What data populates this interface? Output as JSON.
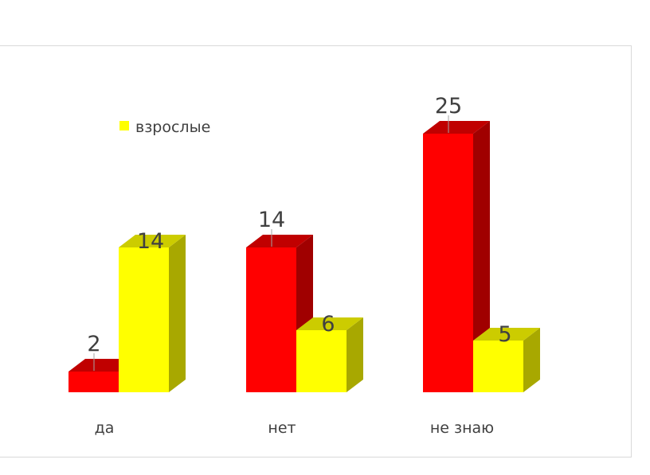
{
  "chart_data": {
    "type": "bar",
    "style": "3d-clustered-column",
    "categories": [
      "да",
      "нет",
      "не знаю"
    ],
    "series": [
      {
        "values": [
          2,
          14,
          25
        ],
        "color": "#ff0000",
        "side_color": "#a00000",
        "top_color": "#c00000"
      },
      {
        "name": "взрослые",
        "values": [
          14,
          6,
          5
        ],
        "color": "#ffff00",
        "side_color": "#a8a800",
        "top_color": "#cccc00"
      }
    ],
    "data_labels": true,
    "legend": {
      "position": "top-left",
      "entries": [
        "взрослые"
      ]
    },
    "grid": false,
    "ylim": [
      0,
      25
    ]
  }
}
